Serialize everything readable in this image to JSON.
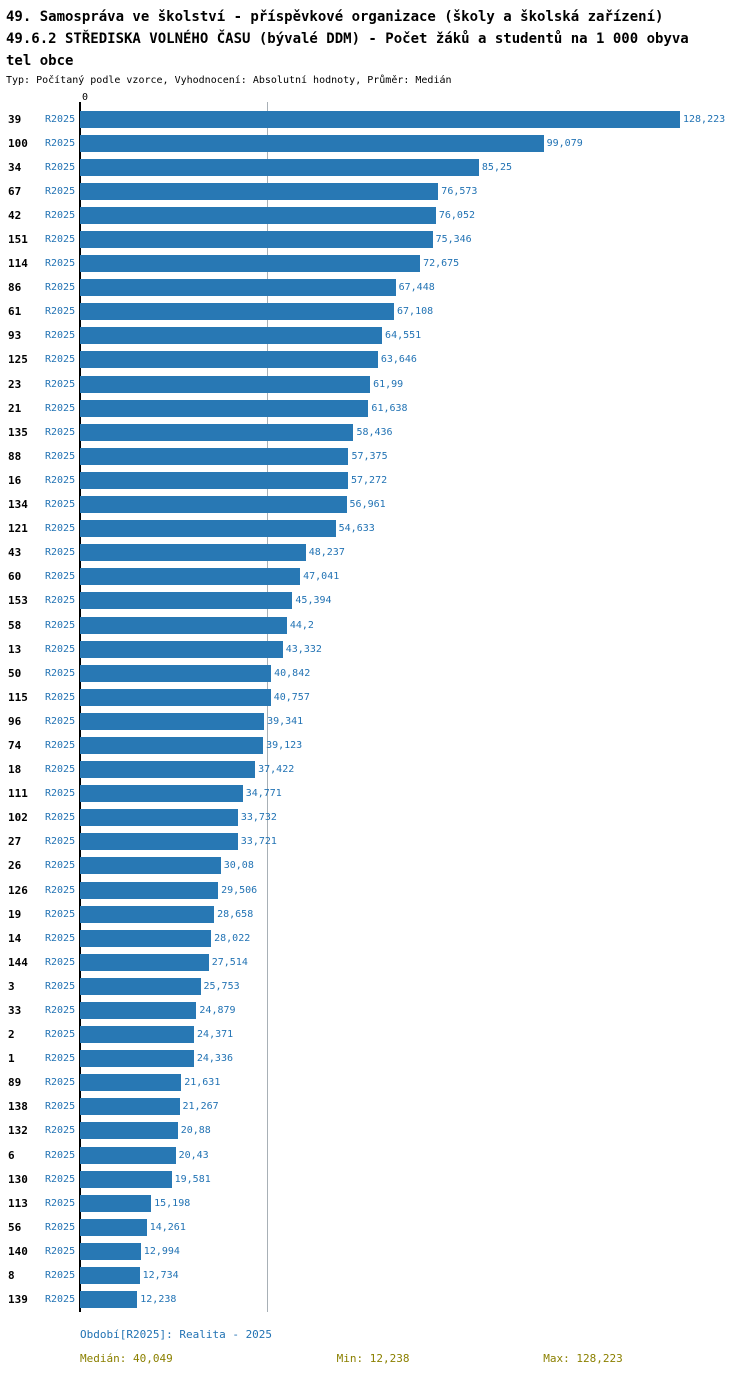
{
  "title_lines": [
    "49. Samospráva ve školství - příspěvkové organizace (školy a školská zařízení)",
    "49.6.2 STŘEDISKA VOLNÉHO ČASU (bývalé DDM) - Počet žáků a studentů na 1 000 obyva",
    "tel obce"
  ],
  "subtitle": "Typ: Počítaný podle vzorce, Vyhodnocení: Absolutní hodnoty, Průměr: Medián",
  "colors": {
    "bar": "#2878b4",
    "blue": "#2273b4",
    "olive": "#8b8000",
    "axis": "#000000",
    "gridline": "#a8b0b6"
  },
  "chart_data": {
    "type": "bar",
    "orientation": "horizontal",
    "title": "49.6.2 STŘEDISKA VOLNÉHO ČASU (bývalé DDM) - Počet žáků a studentů na 1 000 obyvatel obce",
    "period_label": "R2025",
    "axis_top_tick_label": "0",
    "xlim": [
      0,
      128.223
    ],
    "median": 40.049,
    "min": 12.238,
    "max": 128.223,
    "grid": "median-line-only",
    "rows": [
      {
        "id": "39",
        "value": 128.223,
        "label": "128,223"
      },
      {
        "id": "100",
        "value": 99.079,
        "label": "99,079"
      },
      {
        "id": "34",
        "value": 85.25,
        "label": "85,25"
      },
      {
        "id": "67",
        "value": 76.573,
        "label": "76,573"
      },
      {
        "id": "42",
        "value": 76.052,
        "label": "76,052"
      },
      {
        "id": "151",
        "value": 75.346,
        "label": "75,346"
      },
      {
        "id": "114",
        "value": 72.675,
        "label": "72,675"
      },
      {
        "id": "86",
        "value": 67.448,
        "label": "67,448"
      },
      {
        "id": "61",
        "value": 67.108,
        "label": "67,108"
      },
      {
        "id": "93",
        "value": 64.551,
        "label": "64,551"
      },
      {
        "id": "125",
        "value": 63.646,
        "label": "63,646"
      },
      {
        "id": "23",
        "value": 61.99,
        "label": "61,99"
      },
      {
        "id": "21",
        "value": 61.638,
        "label": "61,638"
      },
      {
        "id": "135",
        "value": 58.436,
        "label": "58,436"
      },
      {
        "id": "88",
        "value": 57.375,
        "label": "57,375"
      },
      {
        "id": "16",
        "value": 57.272,
        "label": "57,272"
      },
      {
        "id": "134",
        "value": 56.961,
        "label": "56,961"
      },
      {
        "id": "121",
        "value": 54.633,
        "label": "54,633"
      },
      {
        "id": "43",
        "value": 48.237,
        "label": "48,237"
      },
      {
        "id": "60",
        "value": 47.041,
        "label": "47,041"
      },
      {
        "id": "153",
        "value": 45.394,
        "label": "45,394"
      },
      {
        "id": "58",
        "value": 44.2,
        "label": "44,2"
      },
      {
        "id": "13",
        "value": 43.332,
        "label": "43,332"
      },
      {
        "id": "50",
        "value": 40.842,
        "label": "40,842"
      },
      {
        "id": "115",
        "value": 40.757,
        "label": "40,757"
      },
      {
        "id": "96",
        "value": 39.341,
        "label": "39,341"
      },
      {
        "id": "74",
        "value": 39.123,
        "label": "39,123"
      },
      {
        "id": "18",
        "value": 37.422,
        "label": "37,422"
      },
      {
        "id": "111",
        "value": 34.771,
        "label": "34,771"
      },
      {
        "id": "102",
        "value": 33.732,
        "label": "33,732"
      },
      {
        "id": "27",
        "value": 33.721,
        "label": "33,721"
      },
      {
        "id": "26",
        "value": 30.08,
        "label": "30,08"
      },
      {
        "id": "126",
        "value": 29.506,
        "label": "29,506"
      },
      {
        "id": "19",
        "value": 28.658,
        "label": "28,658"
      },
      {
        "id": "14",
        "value": 28.022,
        "label": "28,022"
      },
      {
        "id": "144",
        "value": 27.514,
        "label": "27,514"
      },
      {
        "id": "3",
        "value": 25.753,
        "label": "25,753"
      },
      {
        "id": "33",
        "value": 24.879,
        "label": "24,879"
      },
      {
        "id": "2",
        "value": 24.371,
        "label": "24,371"
      },
      {
        "id": "1",
        "value": 24.336,
        "label": "24,336"
      },
      {
        "id": "89",
        "value": 21.631,
        "label": "21,631"
      },
      {
        "id": "138",
        "value": 21.267,
        "label": "21,267"
      },
      {
        "id": "132",
        "value": 20.88,
        "label": "20,88"
      },
      {
        "id": "6",
        "value": 20.43,
        "label": "20,43"
      },
      {
        "id": "130",
        "value": 19.581,
        "label": "19,581"
      },
      {
        "id": "113",
        "value": 15.198,
        "label": "15,198"
      },
      {
        "id": "56",
        "value": 14.261,
        "label": "14,261"
      },
      {
        "id": "140",
        "value": 12.994,
        "label": "12,994"
      },
      {
        "id": "8",
        "value": 12.734,
        "label": "12,734"
      },
      {
        "id": "139",
        "value": 12.238,
        "label": "12,238"
      }
    ]
  },
  "footer": {
    "period_note": "Období[R2025]: Realita - 2025",
    "median": "Medián: 40,049",
    "min": "Min: 12,238",
    "max": "Max: 128,223"
  }
}
